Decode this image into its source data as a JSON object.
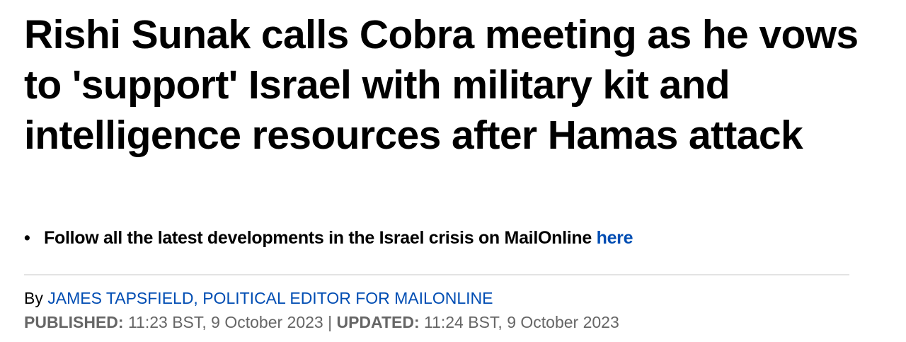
{
  "article": {
    "headline": "Rishi Sunak calls Cobra meeting as he vows to 'support' Israel with military kit and intelligence resources after Hamas attack",
    "bullets": [
      {
        "text": "Follow all the latest developments in the Israel crisis on MailOnline ",
        "link": "here"
      }
    ],
    "byline_prefix": "By",
    "author": "JAMES TAPSFIELD, POLITICAL EDITOR FOR MAILONLINE",
    "published_label": "PUBLISHED:",
    "published": "11:23 BST, 9 October 2023",
    "separator": "|",
    "updated_label": "UPDATED:",
    "updated": "11:24 BST, 9 October 2023"
  },
  "colors": {
    "link": "#004db3",
    "meta": "#666666"
  }
}
